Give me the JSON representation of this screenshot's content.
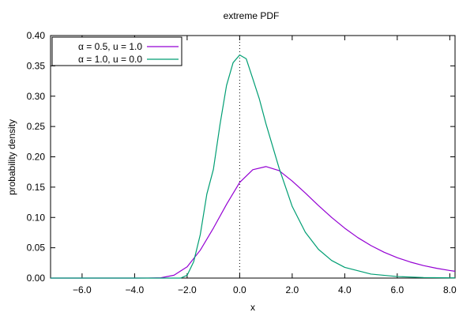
{
  "chart_data": {
    "type": "line",
    "title": "extreme PDF",
    "xlabel": "x",
    "ylabel": "probability density",
    "xlim": [
      -7.2,
      8.2
    ],
    "ylim": [
      0.0,
      0.4
    ],
    "x_ticks": [
      -6.0,
      -4.0,
      -2.0,
      0.0,
      2.0,
      4.0,
      6.0,
      8.0
    ],
    "x_tick_labels": [
      "−6.0",
      "−4.0",
      "−2.0",
      "0.0",
      "2.0",
      "4.0",
      "6.0",
      "8.0"
    ],
    "y_ticks": [
      0.0,
      0.05,
      0.1,
      0.15,
      0.2,
      0.25,
      0.3,
      0.35,
      0.4
    ],
    "y_tick_labels": [
      "0.00",
      "0.05",
      "0.10",
      "0.15",
      "0.20",
      "0.25",
      "0.30",
      "0.35",
      "0.40"
    ],
    "grid": false,
    "legend_position": "top-left",
    "reference_line": {
      "x": 0.0,
      "style": "dotted"
    },
    "series": [
      {
        "name": "α = 0.5, u = 1.0",
        "color": "#9400d3",
        "x": [
          -7.2,
          -6.0,
          -5.0,
          -4.0,
          -3.5,
          -3.0,
          -2.5,
          -2.0,
          -1.5,
          -1.0,
          -0.5,
          0.0,
          0.5,
          1.0,
          1.5,
          2.0,
          2.5,
          3.0,
          3.5,
          4.0,
          4.5,
          5.0,
          5.5,
          6.0,
          6.5,
          7.0,
          7.5,
          8.0,
          8.2
        ],
        "y": [
          0.0,
          0.0,
          0.0,
          0.0,
          0.0001,
          0.0005,
          0.0047,
          0.0186,
          0.046,
          0.0824,
          0.1216,
          0.1578,
          0.1787,
          0.1839,
          0.1773,
          0.16,
          0.1403,
          0.1196,
          0.1001,
          0.0823,
          0.0667,
          0.0536,
          0.0426,
          0.0336,
          0.0264,
          0.0206,
          0.0161,
          0.0125,
          0.0112
        ]
      },
      {
        "name": "α = 1.0, u = 0.0",
        "color": "#009e73",
        "x": [
          -7.2,
          -4.0,
          -3.0,
          -2.5,
          -2.25,
          -2.0,
          -1.75,
          -1.5,
          -1.25,
          -1.0,
          -0.75,
          -0.5,
          -0.25,
          0.0,
          0.25,
          0.5,
          0.75,
          1.0,
          1.5,
          2.0,
          2.5,
          3.0,
          3.5,
          4.0,
          5.0,
          6.0,
          7.0,
          8.2
        ],
        "y": [
          0.0,
          0.0,
          0.0,
          0.0,
          0.0,
          0.0046,
          0.0271,
          0.0717,
          0.1385,
          0.1794,
          0.2529,
          0.3177,
          0.3553,
          0.3679,
          0.3617,
          0.3288,
          0.2953,
          0.2546,
          0.1815,
          0.1182,
          0.0756,
          0.0474,
          0.0291,
          0.0177,
          0.0066,
          0.0025,
          0.0009,
          0.0003
        ]
      }
    ]
  }
}
